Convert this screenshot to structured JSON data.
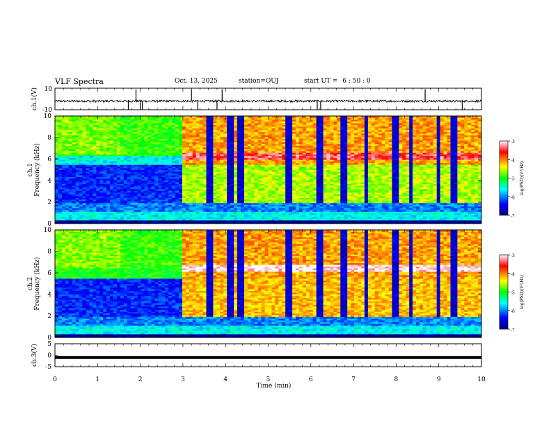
{
  "header": {
    "title": "VLF Spectra",
    "date": "Oct. 13, 2025",
    "station_label": "station=OUJ",
    "start_prefix": "start  UT =",
    "start_time": "6 : 50 : 0"
  },
  "chart_data": [
    {
      "type": "line",
      "name": "ch1-waveform",
      "ylabel": "ch.1(V)",
      "ylim": [
        -10,
        10
      ],
      "yticks": [
        "10",
        "-10"
      ],
      "xlim": [
        0,
        10
      ],
      "baseline": -2,
      "noise_amplitude": 1.0,
      "spike_times": [
        1.72,
        1.9,
        2.0,
        2.05,
        3.2,
        3.35,
        3.8,
        3.92,
        6.15,
        6.23,
        8.68,
        9.55
      ],
      "spike_depth": -10
    },
    {
      "type": "heatmap",
      "name": "ch1-spectrogram",
      "ylabel": "ch.1 Frequency (kHz)",
      "xlim": [
        0,
        10
      ],
      "ylim": [
        0,
        10
      ],
      "yticks": [
        "0",
        "2",
        "4",
        "6",
        "8",
        "10"
      ],
      "colorbar": {
        "label": "log(PSD)(V²/Hz)",
        "range": [
          -7,
          -3
        ],
        "ticks": [
          "-3",
          "-4",
          "-5",
          "-6",
          "-7"
        ]
      },
      "band_khz": [
        5.5,
        7.0
      ],
      "band_onset_min": 2.95,
      "emission_peak_khz": 6.3,
      "gap_minutes": [
        3.6,
        4.1,
        4.35,
        5.5,
        6.2,
        6.8,
        7.3,
        8.0,
        8.35,
        9.0,
        9.35
      ],
      "background_level": -6.4
    },
    {
      "type": "heatmap",
      "name": "ch2-spectrogram",
      "ylabel": "ch.2 Frequency (kHz)",
      "xlim": [
        0,
        10
      ],
      "ylim": [
        0,
        10
      ],
      "yticks": [
        "0",
        "2",
        "4",
        "6",
        "8",
        "10"
      ],
      "colorbar": {
        "label": "log(PSD)(V²/Hz)",
        "range": [
          -7,
          -3
        ],
        "ticks": [
          "-3",
          "-4",
          "-5",
          "-6",
          "-7"
        ]
      },
      "band_khz": [
        5.5,
        7.0
      ],
      "band_onset_min": 2.95,
      "emission_peak_khz": 6.5,
      "gap_minutes": [
        3.6,
        4.1,
        4.35,
        5.5,
        6.2,
        6.8,
        7.3,
        8.0,
        8.35,
        9.0,
        9.35
      ],
      "background_level": -6.3
    },
    {
      "type": "line",
      "name": "ch3-waveform",
      "ylabel": "ch.3(V)",
      "ylim": [
        -5,
        5
      ],
      "yticks": [
        "5",
        "0",
        "-5"
      ],
      "xlim": [
        0,
        10
      ],
      "baseline": -1
    }
  ],
  "x_axis": {
    "label": "Time  (min)",
    "ticks": [
      "0",
      "1",
      "2",
      "3",
      "4",
      "5",
      "6",
      "7",
      "8",
      "9",
      "10"
    ]
  }
}
